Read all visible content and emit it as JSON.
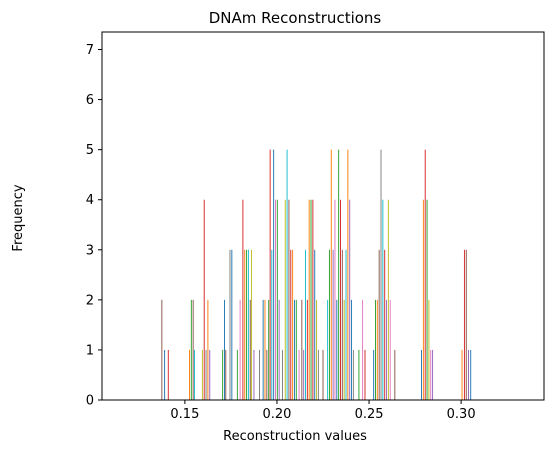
{
  "chart_data": {
    "type": "bar",
    "title": "DNAm Reconstructions",
    "xlabel": "Reconstruction values",
    "ylabel": "Frequency",
    "xlim": [
      0.105,
      0.345
    ],
    "ylim": [
      0,
      7.35
    ],
    "xticks": [
      0.15,
      0.2,
      0.25,
      0.3
    ],
    "xtick_labels": [
      "0.15",
      "0.20",
      "0.25",
      "0.30"
    ],
    "yticks": [
      0,
      1,
      2,
      3,
      4,
      5,
      6,
      7
    ],
    "ytick_labels": [
      "0",
      "1",
      "2",
      "3",
      "4",
      "5",
      "6",
      "7"
    ],
    "grid": false,
    "legend": "none",
    "palette": [
      "#1f77b4",
      "#ff7f0e",
      "#2ca02c",
      "#d62728",
      "#9467bd",
      "#8c564b",
      "#e377c2",
      "#7f7f7f",
      "#bcbd22",
      "#17becf"
    ],
    "bars": [
      {
        "x": 0.1375,
        "y": 2,
        "c": 5
      },
      {
        "x": 0.139,
        "y": 1,
        "c": 0
      },
      {
        "x": 0.141,
        "y": 1,
        "c": 3
      },
      {
        "x": 0.1525,
        "y": 1,
        "c": 1
      },
      {
        "x": 0.1535,
        "y": 2,
        "c": 2
      },
      {
        "x": 0.1545,
        "y": 2,
        "c": 5
      },
      {
        "x": 0.1552,
        "y": 1,
        "c": 9
      },
      {
        "x": 0.1595,
        "y": 1,
        "c": 8
      },
      {
        "x": 0.1605,
        "y": 4,
        "c": 3
      },
      {
        "x": 0.1615,
        "y": 1,
        "c": 7
      },
      {
        "x": 0.1625,
        "y": 2,
        "c": 1
      },
      {
        "x": 0.1635,
        "y": 1,
        "c": 4
      },
      {
        "x": 0.1705,
        "y": 1,
        "c": 2
      },
      {
        "x": 0.1715,
        "y": 2,
        "c": 0
      },
      {
        "x": 0.1722,
        "y": 1,
        "c": 5
      },
      {
        "x": 0.1745,
        "y": 3,
        "c": 7
      },
      {
        "x": 0.1755,
        "y": 3,
        "c": 0
      },
      {
        "x": 0.1785,
        "y": 1,
        "c": 2
      },
      {
        "x": 0.18,
        "y": 2,
        "c": 6
      },
      {
        "x": 0.1815,
        "y": 4,
        "c": 3
      },
      {
        "x": 0.1825,
        "y": 3,
        "c": 1
      },
      {
        "x": 0.1835,
        "y": 3,
        "c": 2
      },
      {
        "x": 0.1845,
        "y": 3,
        "c": 9
      },
      {
        "x": 0.1855,
        "y": 2,
        "c": 5
      },
      {
        "x": 0.1862,
        "y": 3,
        "c": 8
      },
      {
        "x": 0.1875,
        "y": 1,
        "c": 4
      },
      {
        "x": 0.1905,
        "y": 1,
        "c": 7
      },
      {
        "x": 0.1925,
        "y": 2,
        "c": 0
      },
      {
        "x": 0.1935,
        "y": 2,
        "c": 1
      },
      {
        "x": 0.1945,
        "y": 1,
        "c": 5
      },
      {
        "x": 0.1955,
        "y": 2,
        "c": 2
      },
      {
        "x": 0.1963,
        "y": 5,
        "c": 3
      },
      {
        "x": 0.1972,
        "y": 3,
        "c": 9
      },
      {
        "x": 0.1982,
        "y": 5,
        "c": 0
      },
      {
        "x": 0.1992,
        "y": 4,
        "c": 6
      },
      {
        "x": 0.2002,
        "y": 4,
        "c": 2
      },
      {
        "x": 0.2012,
        "y": 2,
        "c": 4
      },
      {
        "x": 0.203,
        "y": 1,
        "c": 7
      },
      {
        "x": 0.2045,
        "y": 4,
        "c": 8
      },
      {
        "x": 0.2055,
        "y": 5,
        "c": 9
      },
      {
        "x": 0.2065,
        "y": 4,
        "c": 5
      },
      {
        "x": 0.2075,
        "y": 3,
        "c": 3
      },
      {
        "x": 0.2085,
        "y": 3,
        "c": 1
      },
      {
        "x": 0.2095,
        "y": 2,
        "c": 0
      },
      {
        "x": 0.2105,
        "y": 2,
        "c": 2
      },
      {
        "x": 0.212,
        "y": 1,
        "c": 6
      },
      {
        "x": 0.2135,
        "y": 2,
        "c": 5
      },
      {
        "x": 0.2145,
        "y": 1,
        "c": 4
      },
      {
        "x": 0.2155,
        "y": 3,
        "c": 9
      },
      {
        "x": 0.2165,
        "y": 2,
        "c": 3
      },
      {
        "x": 0.2175,
        "y": 4,
        "c": 1
      },
      {
        "x": 0.2185,
        "y": 4,
        "c": 2
      },
      {
        "x": 0.2195,
        "y": 4,
        "c": 3
      },
      {
        "x": 0.2205,
        "y": 3,
        "c": 0
      },
      {
        "x": 0.2215,
        "y": 2,
        "c": 8
      },
      {
        "x": 0.2225,
        "y": 1,
        "c": 7
      },
      {
        "x": 0.225,
        "y": 1,
        "c": 5
      },
      {
        "x": 0.2275,
        "y": 2,
        "c": 9
      },
      {
        "x": 0.2285,
        "y": 3,
        "c": 2
      },
      {
        "x": 0.2295,
        "y": 5,
        "c": 1
      },
      {
        "x": 0.2305,
        "y": 3,
        "c": 4
      },
      {
        "x": 0.2315,
        "y": 4,
        "c": 6
      },
      {
        "x": 0.2325,
        "y": 2,
        "c": 0
      },
      {
        "x": 0.2335,
        "y": 5,
        "c": 2
      },
      {
        "x": 0.2345,
        "y": 4,
        "c": 3
      },
      {
        "x": 0.2355,
        "y": 3,
        "c": 5
      },
      {
        "x": 0.2365,
        "y": 2,
        "c": 8
      },
      {
        "x": 0.2375,
        "y": 3,
        "c": 9
      },
      {
        "x": 0.2385,
        "y": 5,
        "c": 1
      },
      {
        "x": 0.2395,
        "y": 4,
        "c": 4
      },
      {
        "x": 0.2405,
        "y": 2,
        "c": 0
      },
      {
        "x": 0.2415,
        "y": 1,
        "c": 7
      },
      {
        "x": 0.2445,
        "y": 1,
        "c": 2
      },
      {
        "x": 0.2465,
        "y": 2,
        "c": 6
      },
      {
        "x": 0.2478,
        "y": 1,
        "c": 3
      },
      {
        "x": 0.2525,
        "y": 1,
        "c": 0
      },
      {
        "x": 0.2535,
        "y": 2,
        "c": 2
      },
      {
        "x": 0.2545,
        "y": 2,
        "c": 1
      },
      {
        "x": 0.2555,
        "y": 3,
        "c": 5
      },
      {
        "x": 0.2565,
        "y": 5,
        "c": 7
      },
      {
        "x": 0.2575,
        "y": 4,
        "c": 9
      },
      {
        "x": 0.2585,
        "y": 3,
        "c": 3
      },
      {
        "x": 0.2595,
        "y": 2,
        "c": 4
      },
      {
        "x": 0.2605,
        "y": 4,
        "c": 8
      },
      {
        "x": 0.2615,
        "y": 2,
        "c": 6
      },
      {
        "x": 0.264,
        "y": 1,
        "c": 5
      },
      {
        "x": 0.2785,
        "y": 1,
        "c": 0
      },
      {
        "x": 0.2795,
        "y": 4,
        "c": 1
      },
      {
        "x": 0.2805,
        "y": 5,
        "c": 3
      },
      {
        "x": 0.2815,
        "y": 4,
        "c": 2
      },
      {
        "x": 0.2825,
        "y": 2,
        "c": 8
      },
      {
        "x": 0.2835,
        "y": 1,
        "c": 6
      },
      {
        "x": 0.2845,
        "y": 1,
        "c": 4
      },
      {
        "x": 0.3005,
        "y": 1,
        "c": 1
      },
      {
        "x": 0.3018,
        "y": 3,
        "c": 3
      },
      {
        "x": 0.3028,
        "y": 3,
        "c": 5
      },
      {
        "x": 0.304,
        "y": 1,
        "c": 4
      },
      {
        "x": 0.3052,
        "y": 1,
        "c": 0
      }
    ]
  }
}
